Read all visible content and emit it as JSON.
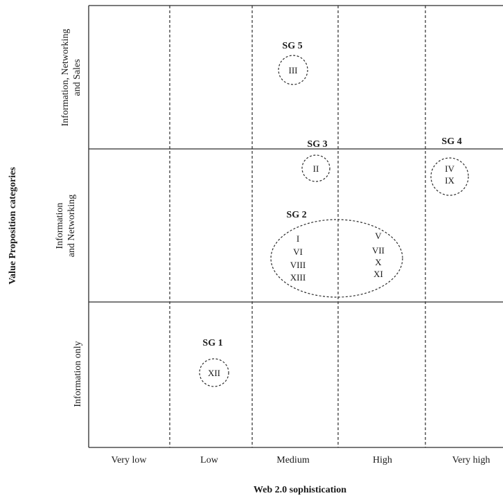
{
  "x_axis": {
    "title": "Web 2.0 sophistication",
    "categories": [
      "Very low",
      "Low",
      "Medium",
      "High",
      "Very high"
    ]
  },
  "y_axis": {
    "title": "Value Proposition categories",
    "categories": [
      [
        "Information, Networking",
        "and Sales"
      ],
      [
        "Information",
        "and Networking"
      ],
      [
        "Information only"
      ]
    ]
  },
  "groups": [
    {
      "label": "SG 5",
      "members": [
        "III"
      ]
    },
    {
      "label": "SG 3",
      "members": [
        "II"
      ]
    },
    {
      "label": "SG 4",
      "members": [
        "IV",
        "IX"
      ]
    },
    {
      "label": "SG 2",
      "members_left": [
        "I",
        "VI",
        "VIII",
        "XIII"
      ],
      "members_right": [
        "V",
        "VII",
        "X",
        "XI"
      ]
    },
    {
      "label": "SG 1",
      "members": [
        "XII"
      ]
    }
  ]
}
